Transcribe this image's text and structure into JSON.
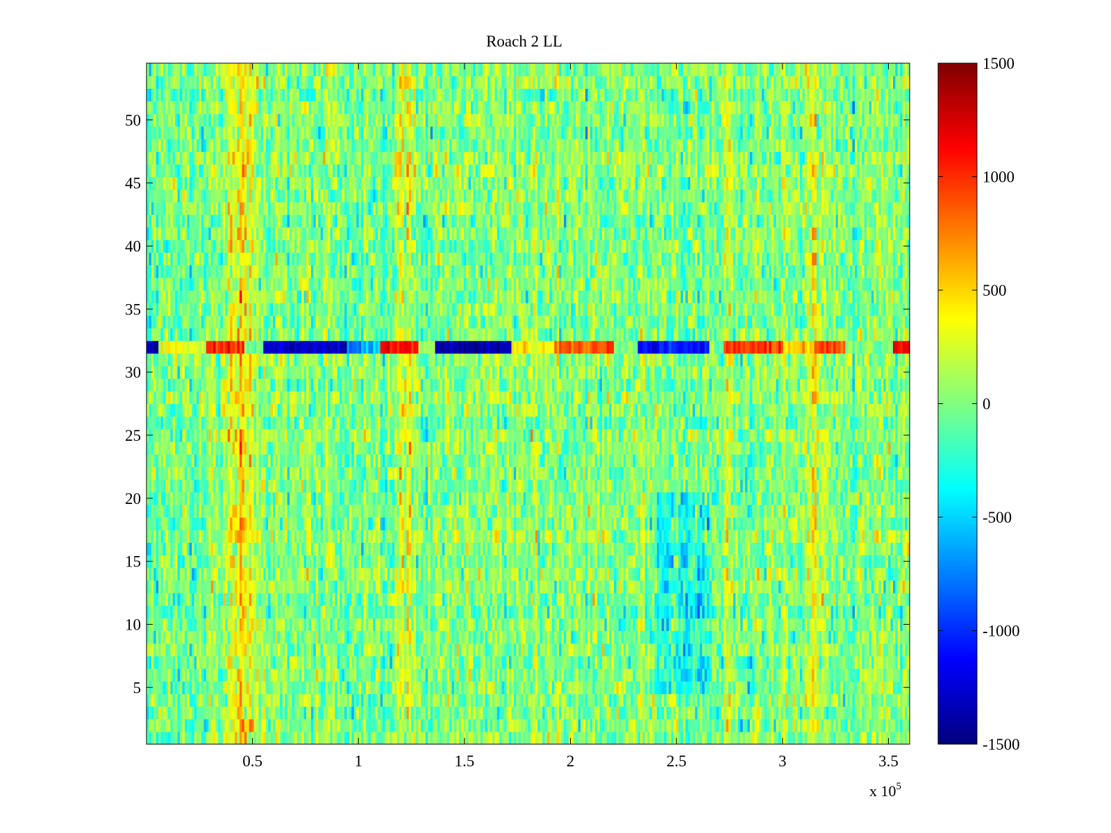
{
  "chart_data": {
    "type": "heatmap",
    "title": "Roach 2 LL",
    "xlabel": "",
    "ylabel": "",
    "x_exponent_label": "x 10",
    "x_exponent_power": "5",
    "xlim": [
      0,
      3.6
    ],
    "ylim": [
      0.5,
      54.5
    ],
    "x_ticks": [
      0.5,
      1,
      1.5,
      2,
      2.5,
      3,
      3.5
    ],
    "x_tick_labels": [
      "0.5",
      "1",
      "1.5",
      "2",
      "2.5",
      "3",
      "3.5"
    ],
    "y_ticks": [
      5,
      10,
      15,
      20,
      25,
      30,
      35,
      40,
      45,
      50
    ],
    "y_tick_labels": [
      "5",
      "10",
      "15",
      "20",
      "25",
      "30",
      "35",
      "40",
      "45",
      "50"
    ],
    "rows": 54,
    "colorbar": {
      "colormap": "jet",
      "clim": [
        -1500,
        1500
      ],
      "ticks": [
        1500,
        1000,
        500,
        0,
        -500,
        -1000,
        -1500
      ],
      "tick_labels": [
        "1500",
        "1000",
        "500",
        "0",
        "-500",
        "-1000",
        "-1500"
      ]
    },
    "features": {
      "base_value": 0,
      "anomaly_row": 32,
      "anomaly_segments": [
        {
          "x_start": 0.0,
          "x_end": 0.06,
          "value": -1300
        },
        {
          "x_start": 0.06,
          "x_end": 0.28,
          "value": 300
        },
        {
          "x_start": 0.28,
          "x_end": 0.46,
          "value": 1000
        },
        {
          "x_start": 0.46,
          "x_end": 0.55,
          "value": 0
        },
        {
          "x_start": 0.55,
          "x_end": 0.95,
          "value": -1300
        },
        {
          "x_start": 0.95,
          "x_end": 1.1,
          "value": -700
        },
        {
          "x_start": 1.1,
          "x_end": 1.28,
          "value": 1100
        },
        {
          "x_start": 1.28,
          "x_end": 1.36,
          "value": 100
        },
        {
          "x_start": 1.36,
          "x_end": 1.72,
          "value": -1400
        },
        {
          "x_start": 1.72,
          "x_end": 1.92,
          "value": 400
        },
        {
          "x_start": 1.92,
          "x_end": 2.2,
          "value": 900
        },
        {
          "x_start": 2.2,
          "x_end": 2.32,
          "value": 0
        },
        {
          "x_start": 2.32,
          "x_end": 2.65,
          "value": -1100
        },
        {
          "x_start": 2.65,
          "x_end": 2.72,
          "value": 0
        },
        {
          "x_start": 2.72,
          "x_end": 3.0,
          "value": 950
        },
        {
          "x_start": 3.0,
          "x_end": 3.15,
          "value": 500
        },
        {
          "x_start": 3.15,
          "x_end": 3.3,
          "value": 900
        },
        {
          "x_start": 3.3,
          "x_end": 3.52,
          "value": 0
        },
        {
          "x_start": 3.52,
          "x_end": 3.6,
          "value": 1100
        }
      ],
      "warm_vertical_bands": [
        {
          "x_center": 0.45,
          "width": 0.18,
          "value": 450
        },
        {
          "x_center": 1.22,
          "width": 0.12,
          "value": 450
        },
        {
          "x_center": 2.75,
          "width": 0.05,
          "value": 350
        },
        {
          "x_center": 3.15,
          "width": 0.1,
          "value": 450
        }
      ],
      "cool_region": {
        "x_start": 2.4,
        "x_end": 2.65,
        "y_start": 5,
        "y_end": 20,
        "value": -350
      },
      "noise_amplitude": 280
    }
  }
}
